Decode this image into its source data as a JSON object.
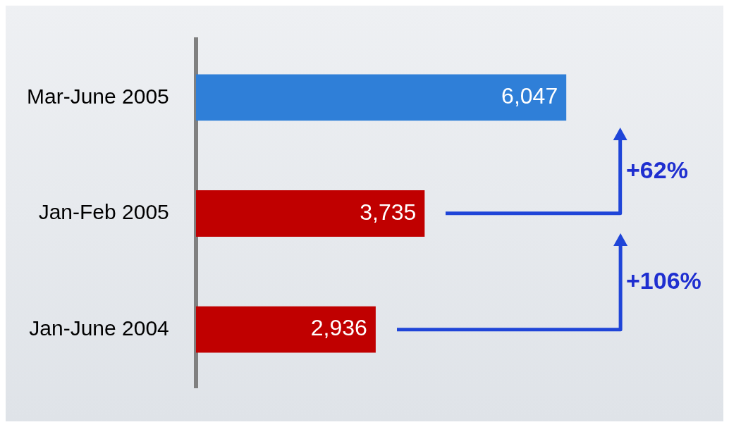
{
  "chart_data": {
    "type": "bar",
    "orientation": "horizontal",
    "categories": [
      "Mar-June 2005",
      "Jan-Feb 2005",
      "Jan-June 2004"
    ],
    "values": [
      6047,
      3735,
      2936
    ],
    "colors": [
      "#2f7fd8",
      "#c00000",
      "#c00000"
    ],
    "value_labels": [
      "6,047",
      "3,735",
      "2,936"
    ],
    "annotations": [
      "+62%",
      "+106%"
    ]
  }
}
